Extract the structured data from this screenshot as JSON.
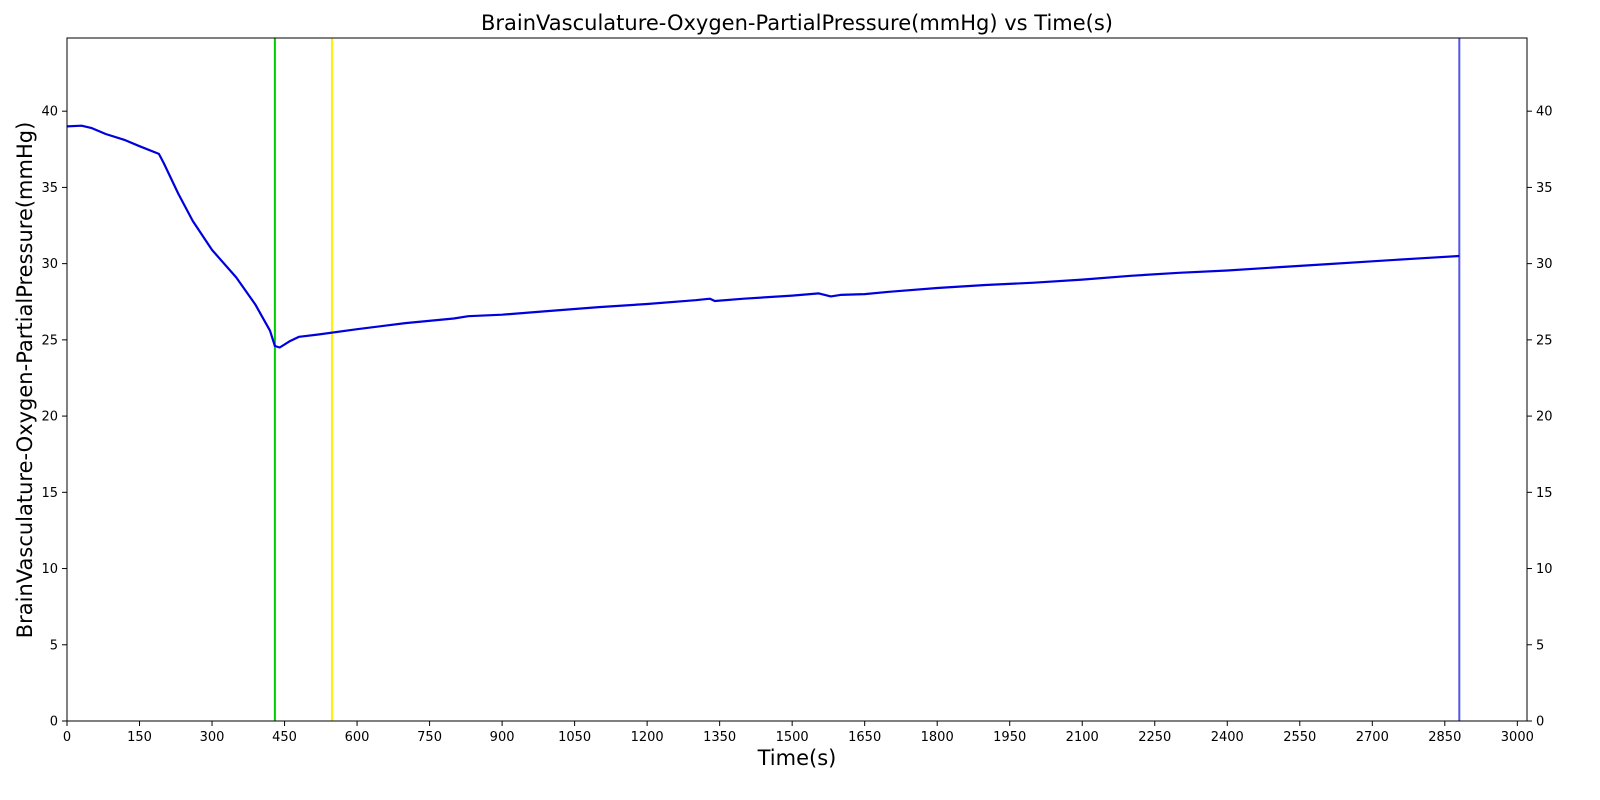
{
  "chart_data": {
    "type": "line",
    "title": "BrainVasculature-Oxygen-PartialPressure(mmHg) vs Time(s)",
    "xlabel": "Time(s)",
    "ylabel": "BrainVasculature-Oxygen-PartialPressure(mmHg)",
    "xlim": [
      0,
      3020
    ],
    "ylim": [
      0,
      44.8
    ],
    "xticks": [
      0,
      150,
      300,
      450,
      600,
      750,
      900,
      1050,
      1200,
      1350,
      1500,
      1650,
      1800,
      1950,
      2100,
      2250,
      2400,
      2550,
      2700,
      2850,
      3000
    ],
    "yticks": [
      0,
      5,
      10,
      15,
      20,
      25,
      30,
      35,
      40
    ],
    "right_axis_ticks": true,
    "grid": false,
    "legend": "none",
    "colors": {
      "series": "#0000dd",
      "marker_green": "#00cc00",
      "marker_yellow": "#ffee00",
      "marker_blue": "#5555ee"
    },
    "vertical_markers": [
      {
        "x": 430,
        "color": "#00cc00"
      },
      {
        "x": 548,
        "color": "#ffee00"
      },
      {
        "x": 2880,
        "color": "#5555ee"
      }
    ],
    "series": [
      {
        "x": [
          0,
          30,
          50,
          80,
          120,
          150,
          190,
          200,
          230,
          260,
          300,
          350,
          390,
          420,
          430,
          440,
          460,
          480,
          520,
          600,
          700,
          800,
          830,
          900,
          1000,
          1100,
          1200,
          1300,
          1330,
          1340,
          1400,
          1500,
          1555,
          1580,
          1600,
          1650,
          1700,
          1800,
          1900,
          2000,
          2100,
          2200,
          2300,
          2400,
          2500,
          2600,
          2700,
          2800,
          2880
        ],
        "y": [
          39.0,
          39.05,
          38.9,
          38.5,
          38.1,
          37.7,
          37.2,
          36.6,
          34.6,
          32.8,
          30.9,
          29.1,
          27.3,
          25.6,
          24.6,
          24.5,
          24.9,
          25.2,
          25.35,
          25.7,
          26.1,
          26.4,
          26.55,
          26.65,
          26.9,
          27.15,
          27.35,
          27.6,
          27.7,
          27.55,
          27.7,
          27.9,
          28.05,
          27.85,
          27.95,
          28.0,
          28.15,
          28.4,
          28.6,
          28.75,
          28.95,
          29.2,
          29.4,
          29.55,
          29.75,
          29.95,
          30.15,
          30.35,
          30.5
        ]
      }
    ]
  }
}
